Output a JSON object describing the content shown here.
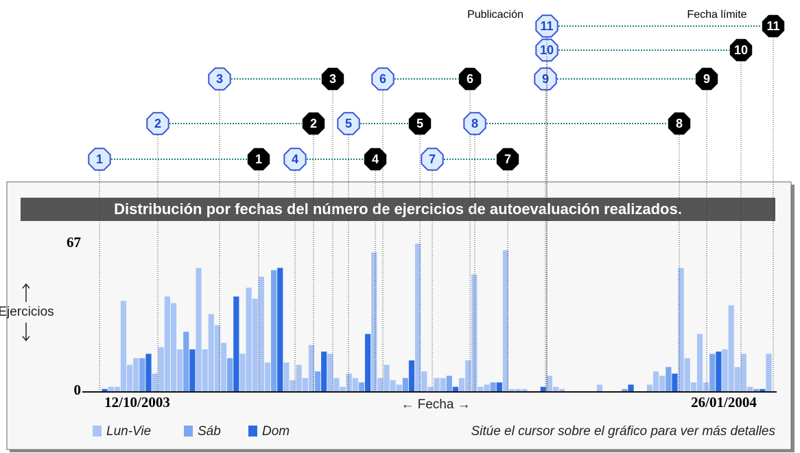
{
  "chart_data": {
    "type": "bar",
    "title": "Distribución por fechas del número de ejercicios de autoevaluación realizados.",
    "y_label": "Ejercicios",
    "x_label": "← Fecha →",
    "x_end_labels": [
      "12/10/2003",
      "26/01/2004"
    ],
    "ylim": [
      0,
      67
    ],
    "yticks": [
      0,
      67
    ],
    "grid": false,
    "note": "Sitúe el cursor sobre el gráfico para ver más detalles",
    "series": [
      {
        "name": "Lun-Vie",
        "color": "#a9c5f5",
        "values": [
          null,
          2,
          2,
          41,
          12,
          15,
          null,
          null,
          8,
          20,
          43,
          40,
          19,
          null,
          null,
          56,
          19,
          35,
          30,
          22,
          null,
          null,
          17,
          47,
          42,
          52,
          13,
          null,
          null,
          13,
          5,
          12,
          6,
          21,
          null,
          null,
          17,
          6,
          2,
          8,
          6,
          null,
          null,
          63,
          6,
          12,
          5,
          3,
          null,
          null,
          67,
          9,
          2,
          6,
          6,
          null,
          null,
          6,
          14,
          53,
          2,
          3,
          null,
          null,
          64,
          1,
          1,
          1,
          0,
          null,
          null,
          7,
          2,
          1,
          0,
          0,
          null,
          null,
          0,
          3,
          0,
          0,
          0,
          null,
          null,
          0,
          0,
          3,
          9,
          7,
          null,
          null,
          56,
          15,
          4,
          26,
          4,
          null,
          null,
          19,
          39,
          11,
          17,
          2,
          null,
          null,
          17
        ]
      },
      {
        "name": "Sáb",
        "color": "#7ba7f0",
        "values": [
          null,
          null,
          null,
          null,
          null,
          null,
          15,
          null,
          null,
          null,
          null,
          null,
          null,
          27,
          null,
          null,
          null,
          null,
          null,
          null,
          15,
          null,
          null,
          null,
          null,
          null,
          null,
          55,
          null,
          null,
          null,
          null,
          null,
          null,
          9,
          null,
          null,
          null,
          null,
          null,
          null,
          4,
          null,
          null,
          null,
          null,
          null,
          null,
          6,
          null,
          null,
          null,
          null,
          null,
          null,
          7,
          null,
          null,
          null,
          null,
          null,
          null,
          4,
          null,
          null,
          null,
          null,
          null,
          null,
          0,
          null,
          null,
          null,
          null,
          null,
          null,
          0,
          null,
          null,
          null,
          null,
          null,
          null,
          1,
          null,
          null,
          null,
          null,
          null,
          null,
          11,
          null,
          null,
          null,
          null,
          null,
          null,
          17,
          null,
          null,
          null,
          null,
          null,
          null,
          1,
          null,
          null
        ]
      },
      {
        "name": "Dom",
        "color": "#2b6be2",
        "values": [
          1,
          null,
          null,
          null,
          null,
          null,
          null,
          17,
          null,
          null,
          null,
          null,
          null,
          null,
          19,
          null,
          null,
          null,
          null,
          null,
          null,
          43,
          null,
          null,
          null,
          null,
          null,
          null,
          56,
          null,
          null,
          null,
          null,
          null,
          null,
          18,
          null,
          null,
          null,
          null,
          null,
          null,
          26,
          null,
          null,
          null,
          null,
          null,
          null,
          14,
          null,
          null,
          null,
          null,
          null,
          null,
          2,
          null,
          null,
          null,
          null,
          null,
          null,
          4,
          null,
          null,
          null,
          null,
          null,
          null,
          2,
          null,
          null,
          null,
          null,
          null,
          null,
          0,
          null,
          null,
          null,
          null,
          null,
          null,
          3,
          null,
          null,
          null,
          null,
          null,
          null,
          8,
          null,
          null,
          null,
          null,
          null,
          null,
          18,
          null,
          null,
          null,
          null,
          null,
          null,
          1,
          null
        ]
      }
    ]
  },
  "milestones": {
    "publication_label": "Publicación",
    "deadline_label": "Fecha límite",
    "numbers": [
      "1",
      "2",
      "3",
      "4",
      "5",
      "6",
      "7",
      "8",
      "9",
      "10",
      "11"
    ]
  }
}
